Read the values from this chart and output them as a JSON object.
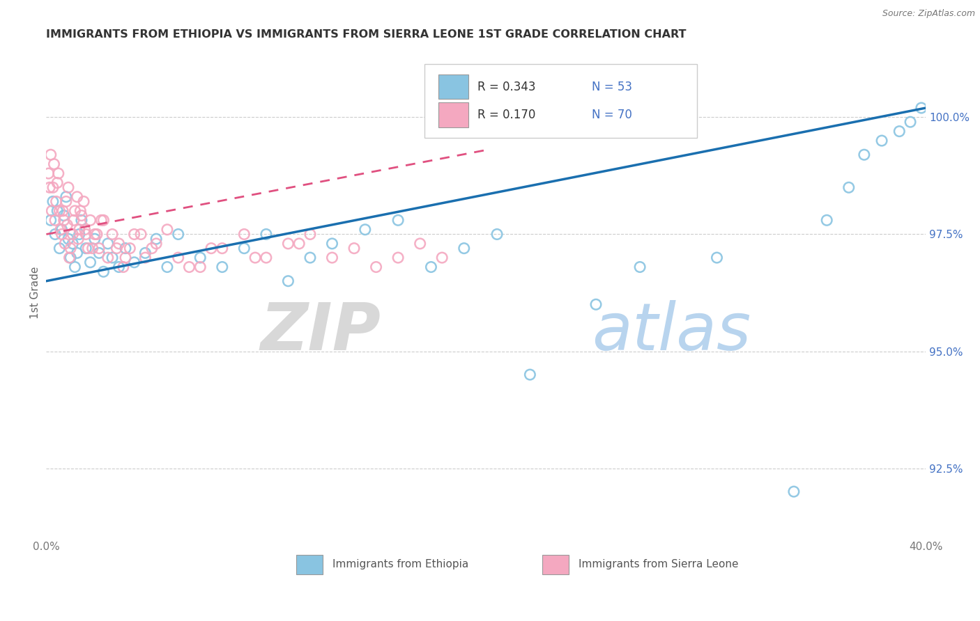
{
  "title": "IMMIGRANTS FROM ETHIOPIA VS IMMIGRANTS FROM SIERRA LEONE 1ST GRADE CORRELATION CHART",
  "source": "Source: ZipAtlas.com",
  "ylabel": "1st Grade",
  "xlim": [
    0.0,
    40.0
  ],
  "ylim": [
    91.0,
    101.5
  ],
  "y_ticks_right": [
    92.5,
    95.0,
    97.5,
    100.0
  ],
  "y_tick_labels_right": [
    "92.5%",
    "95.0%",
    "97.5%",
    "100.0%"
  ],
  "legend_r1": "0.343",
  "legend_n1": "53",
  "legend_r2": "0.170",
  "legend_n2": "70",
  "legend_label1": "Immigrants from Ethiopia",
  "legend_label2": "Immigrants from Sierra Leone",
  "color_ethiopia": "#89c4e1",
  "color_sierra": "#f4a8c0",
  "color_line_ethiopia": "#1a6faf",
  "color_line_sierra": "#e05080",
  "watermark_zip": "ZIP",
  "watermark_atlas": "atlas",
  "background_color": "#ffffff",
  "grid_color": "#cccccc",
  "ethiopia_x": [
    0.2,
    0.3,
    0.4,
    0.5,
    0.6,
    0.7,
    0.8,
    0.9,
    1.0,
    1.1,
    1.2,
    1.3,
    1.4,
    1.5,
    1.6,
    1.8,
    2.0,
    2.2,
    2.4,
    2.6,
    2.8,
    3.0,
    3.3,
    3.6,
    4.0,
    4.5,
    5.0,
    5.5,
    6.0,
    7.0,
    8.0,
    9.0,
    10.0,
    11.0,
    12.0,
    13.0,
    14.5,
    16.0,
    17.5,
    19.0,
    20.5,
    22.0,
    25.0,
    27.0,
    30.5,
    34.0,
    35.5,
    36.5,
    37.2,
    38.0,
    38.8,
    39.3,
    39.8
  ],
  "ethiopia_y": [
    97.8,
    98.2,
    97.5,
    98.0,
    97.2,
    97.6,
    97.9,
    98.3,
    97.4,
    97.0,
    97.3,
    96.8,
    97.1,
    97.5,
    97.8,
    97.2,
    96.9,
    97.4,
    97.1,
    96.7,
    97.3,
    97.0,
    96.8,
    97.2,
    96.9,
    97.1,
    97.4,
    96.8,
    97.5,
    97.0,
    96.8,
    97.2,
    97.5,
    96.5,
    97.0,
    97.3,
    97.6,
    97.8,
    96.8,
    97.2,
    97.5,
    94.5,
    96.0,
    96.8,
    97.0,
    92.0,
    97.8,
    98.5,
    99.2,
    99.5,
    99.7,
    99.9,
    100.2
  ],
  "sierra_x": [
    0.1,
    0.15,
    0.2,
    0.25,
    0.3,
    0.35,
    0.4,
    0.45,
    0.5,
    0.6,
    0.7,
    0.8,
    0.9,
    1.0,
    1.1,
    1.2,
    1.3,
    1.4,
    1.5,
    1.6,
    1.7,
    1.8,
    1.9,
    2.0,
    2.2,
    2.4,
    2.6,
    2.8,
    3.0,
    3.2,
    3.5,
    3.8,
    4.0,
    4.5,
    5.0,
    5.5,
    6.0,
    7.0,
    8.0,
    9.0,
    10.0,
    11.0,
    12.0,
    13.0,
    14.0,
    15.0,
    16.0,
    17.0,
    18.0,
    4.3,
    0.55,
    0.65,
    0.75,
    0.85,
    0.95,
    1.05,
    1.25,
    1.45,
    1.55,
    1.75,
    2.1,
    2.3,
    2.5,
    3.3,
    3.6,
    4.8,
    6.5,
    7.5,
    9.5,
    11.5
  ],
  "sierra_y": [
    98.8,
    98.5,
    99.2,
    98.0,
    98.5,
    99.0,
    97.8,
    98.2,
    98.6,
    98.0,
    97.5,
    97.8,
    98.2,
    98.5,
    97.2,
    97.5,
    98.0,
    98.3,
    97.6,
    97.9,
    98.2,
    97.5,
    97.2,
    97.8,
    97.5,
    97.2,
    97.8,
    97.0,
    97.5,
    97.2,
    96.8,
    97.2,
    97.5,
    97.0,
    97.3,
    97.6,
    97.0,
    96.8,
    97.2,
    97.5,
    97.0,
    97.3,
    97.5,
    97.0,
    97.2,
    96.8,
    97.0,
    97.3,
    97.0,
    97.5,
    98.8,
    97.6,
    98.0,
    97.3,
    97.7,
    97.0,
    97.8,
    97.4,
    98.0,
    97.6,
    97.2,
    97.5,
    97.8,
    97.3,
    97.0,
    97.2,
    96.8,
    97.2,
    97.0,
    97.3
  ],
  "trend_eth_x0": 0.0,
  "trend_eth_y0": 96.5,
  "trend_eth_x1": 40.0,
  "trend_eth_y1": 100.2,
  "trend_sie_x0": 0.0,
  "trend_sie_y0": 97.5,
  "trend_sie_x1": 20.0,
  "trend_sie_y1": 99.3
}
